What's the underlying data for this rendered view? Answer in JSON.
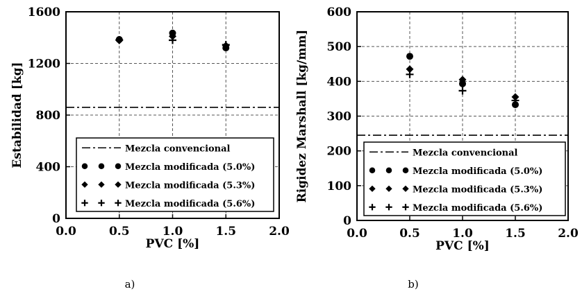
{
  "chart_data": [
    {
      "type": "scatter",
      "caption": "a)",
      "xlabel": "PVC [%]",
      "ylabel": "Estabilidad [kg]",
      "xlim": [
        0.0,
        2.0
      ],
      "ylim": [
        0,
        1600
      ],
      "xticks": [
        "0.0",
        "0.5",
        "1.0",
        "1.5",
        "2.0"
      ],
      "yticks": [
        "0",
        "400",
        "800",
        "1200",
        "1600"
      ],
      "xtick_values": [
        0.0,
        0.5,
        1.0,
        1.5,
        2.0
      ],
      "ytick_values": [
        0,
        400,
        800,
        1200,
        1600
      ],
      "grid": true,
      "legend_position": "bottom-left",
      "reference_line": {
        "name": "Mezcla convencional",
        "y": 860
      },
      "series": [
        {
          "name": "Mezcla modificada (5.0%)",
          "marker": "circle",
          "x": [
            0.5,
            1.0,
            1.5
          ],
          "y": [
            1385,
            1435,
            1320
          ]
        },
        {
          "name": "Mezcla modificada (5.3%)",
          "marker": "diamond",
          "x": [
            0.5,
            1.0,
            1.5
          ],
          "y": [
            1378,
            1410,
            1338
          ]
        },
        {
          "name": "Mezcla modificada (5.6%)",
          "marker": "plus",
          "x": [
            0.5,
            1.0,
            1.5
          ],
          "y": [
            1382,
            1380,
            1345
          ]
        }
      ]
    },
    {
      "type": "scatter",
      "caption": "b)",
      "xlabel": "PVC [%]",
      "ylabel": "Rigidez Marshall [kg/mm]",
      "xlim": [
        0.0,
        2.0
      ],
      "ylim": [
        0,
        600
      ],
      "xticks": [
        "0.0",
        "0.5",
        "1.0",
        "1.5",
        "2.0"
      ],
      "yticks": [
        "0",
        "100",
        "200",
        "300",
        "400",
        "500",
        "600"
      ],
      "xtick_values": [
        0.0,
        0.5,
        1.0,
        1.5,
        2.0
      ],
      "ytick_values": [
        0,
        100,
        200,
        300,
        400,
        500,
        600
      ],
      "grid": true,
      "legend_position": "bottom-left",
      "reference_line": {
        "name": "Mezcla convencional",
        "y": 245
      },
      "series": [
        {
          "name": "Mezcla modificada (5.0%)",
          "marker": "circle",
          "x": [
            0.5,
            1.0,
            1.5
          ],
          "y": [
            472,
            393,
            333
          ]
        },
        {
          "name": "Mezcla modificada (5.3%)",
          "marker": "diamond",
          "x": [
            0.5,
            1.0,
            1.5
          ],
          "y": [
            435,
            405,
            355
          ]
        },
        {
          "name": "Mezcla modificada (5.6%)",
          "marker": "plus",
          "x": [
            0.5,
            1.0,
            1.5
          ],
          "y": [
            420,
            373,
            345
          ]
        }
      ]
    }
  ]
}
